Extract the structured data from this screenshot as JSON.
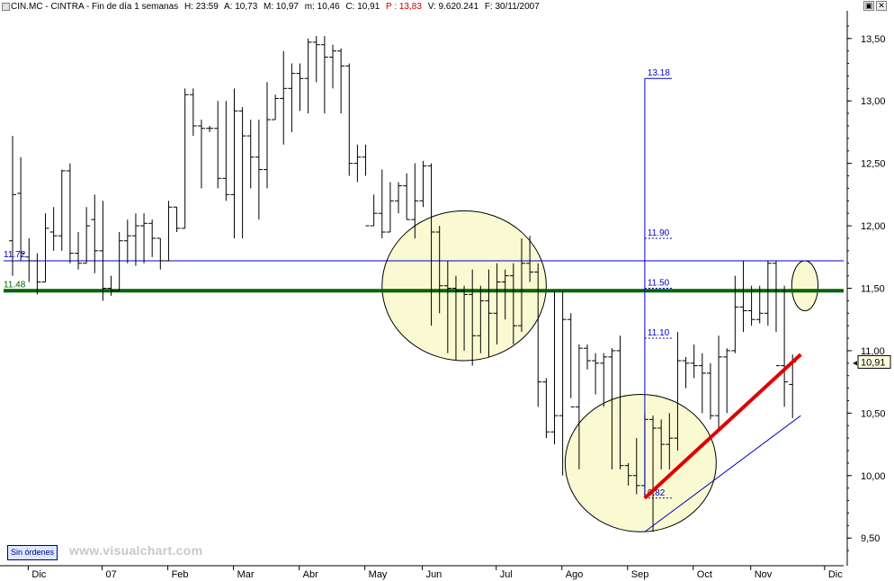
{
  "header": {
    "symbol": "CIN.MC - CINTRA - Fin de día 1 semanas",
    "hour": "H: 23:59",
    "open": "A: 10,73",
    "high": "M: 10,97",
    "low": "m: 10,46",
    "close": "C: 10,91",
    "p": "P : 13,83",
    "volume": "V: 9.620.241",
    "date": "F: 30/11/2007"
  },
  "window_controls": {
    "restore": "▣",
    "close": "✕"
  },
  "badge": "Sin órdenes",
  "watermark": "www.visualchart.com",
  "colors": {
    "bars": "#000000",
    "support_line": "#006400",
    "resistance_line": "#0000c0",
    "trend_line": "#e00000",
    "ellipse_fill": "#fafad2",
    "annotation": "#0000c0"
  },
  "chart_data": {
    "type": "ohlc",
    "title": "CIN.MC - CINTRA - Fin de día 1 semanas",
    "ylim": [
      9.3,
      13.7
    ],
    "y_ticks": [
      "9,50",
      "10,00",
      "10,50",
      "11,00",
      "11,50",
      "12,00",
      "12,50",
      "13,00",
      "13,50"
    ],
    "y_tick_values": [
      9.5,
      10.0,
      10.5,
      11.0,
      11.5,
      12.0,
      12.5,
      13.0,
      13.5
    ],
    "x_labels": [
      "Dic",
      "07",
      "Feb",
      "Mar",
      "Abr",
      "May",
      "Jun",
      "Jul",
      "Ago",
      "Sep",
      "Oct",
      "Nov",
      "Dic"
    ],
    "x_label_weeks": [
      3,
      12,
      20,
      28,
      36,
      44,
      51,
      60,
      68,
      76,
      84,
      91,
      100
    ],
    "bars": [
      [
        11.88,
        12.72,
        11.6,
        12.25
      ],
      [
        12.26,
        12.55,
        11.72,
        11.78
      ],
      [
        11.75,
        11.9,
        11.55,
        11.72
      ],
      [
        11.72,
        11.78,
        11.45,
        11.55
      ],
      [
        11.55,
        12.1,
        11.55,
        11.98
      ],
      [
        11.95,
        12.15,
        11.8,
        11.92
      ],
      [
        11.92,
        12.45,
        11.8,
        12.44
      ],
      [
        12.44,
        12.5,
        11.7,
        11.78
      ],
      [
        11.78,
        11.95,
        11.65,
        11.7
      ],
      [
        11.7,
        12.15,
        11.7,
        12.0
      ],
      [
        12.05,
        12.25,
        11.62,
        11.8
      ],
      [
        11.8,
        12.2,
        11.4,
        11.5
      ],
      [
        11.5,
        11.6,
        11.44,
        11.48
      ],
      [
        11.48,
        11.95,
        11.48,
        11.88
      ],
      [
        11.88,
        12.05,
        11.7,
        11.92
      ],
      [
        11.92,
        12.1,
        11.68,
        12.0
      ],
      [
        12.0,
        12.1,
        11.7,
        12.02
      ],
      [
        12.02,
        12.05,
        11.75,
        11.9
      ],
      [
        11.9,
        11.9,
        11.65,
        11.72
      ],
      [
        11.72,
        12.2,
        11.72,
        12.15
      ],
      [
        12.15,
        12.15,
        11.95,
        11.98
      ],
      [
        11.98,
        13.1,
        11.98,
        13.05
      ],
      [
        13.05,
        13.1,
        12.72,
        12.8
      ],
      [
        12.8,
        12.85,
        12.3,
        12.78
      ],
      [
        12.78,
        12.8,
        12.75,
        12.78
      ],
      [
        12.78,
        13.0,
        12.3,
        12.38
      ],
      [
        12.38,
        13.0,
        12.2,
        12.25
      ],
      [
        12.25,
        13.1,
        11.9,
        12.92
      ],
      [
        12.92,
        12.95,
        11.9,
        12.72
      ],
      [
        12.72,
        12.85,
        12.3,
        12.55
      ],
      [
        12.55,
        12.85,
        12.05,
        12.45
      ],
      [
        12.45,
        13.15,
        12.3,
        12.85
      ],
      [
        12.85,
        13.05,
        12.85,
        13.02
      ],
      [
        13.02,
        13.4,
        12.65,
        13.1
      ],
      [
        13.1,
        13.3,
        12.75,
        13.22
      ],
      [
        13.22,
        13.3,
        12.92,
        13.18
      ],
      [
        13.18,
        13.5,
        12.9,
        13.47
      ],
      [
        13.47,
        13.52,
        13.15,
        13.45
      ],
      [
        13.45,
        13.52,
        12.9,
        13.35
      ],
      [
        13.35,
        13.45,
        13.1,
        13.4
      ],
      [
        13.4,
        13.42,
        12.9,
        13.28
      ],
      [
        13.28,
        13.3,
        12.4,
        12.5
      ],
      [
        12.5,
        12.65,
        12.35,
        12.55
      ],
      [
        12.55,
        12.65,
        12.4,
        12.0
      ],
      [
        12.0,
        12.25,
        12.0,
        12.1
      ],
      [
        12.1,
        12.45,
        11.9,
        11.95
      ],
      [
        11.95,
        12.35,
        11.95,
        12.2
      ],
      [
        12.2,
        12.35,
        12.1,
        12.32
      ],
      [
        12.32,
        12.42,
        12.05,
        12.05
      ],
      [
        12.05,
        12.5,
        11.9,
        12.2
      ],
      [
        12.2,
        12.52,
        12.15,
        12.48
      ],
      [
        12.48,
        12.5,
        11.2,
        11.95
      ],
      [
        11.95,
        12.0,
        11.3,
        11.52
      ],
      [
        11.52,
        11.72,
        10.98,
        11.5
      ],
      [
        11.5,
        11.6,
        10.92,
        11.48
      ],
      [
        11.48,
        11.52,
        11.0,
        11.45
      ],
      [
        11.45,
        11.65,
        10.88,
        11.12
      ],
      [
        11.12,
        11.52,
        10.98,
        11.4
      ],
      [
        11.4,
        11.65,
        10.95,
        11.3
      ],
      [
        11.3,
        11.7,
        11.05,
        11.55
      ],
      [
        11.55,
        11.65,
        11.25,
        11.6
      ],
      [
        11.6,
        11.7,
        11.05,
        11.2
      ],
      [
        11.2,
        11.9,
        11.15,
        11.7
      ],
      [
        11.7,
        11.92,
        11.55,
        11.63
      ],
      [
        11.63,
        11.7,
        10.55,
        10.75
      ],
      [
        10.75,
        10.78,
        10.3,
        10.35
      ],
      [
        10.35,
        11.48,
        10.25,
        10.48
      ],
      [
        10.48,
        11.48,
        10.0,
        11.25
      ],
      [
        11.25,
        11.3,
        10.62,
        10.55
      ],
      [
        10.55,
        11.05,
        10.05,
        11.02
      ],
      [
        11.02,
        11.05,
        10.85,
        10.92
      ],
      [
        10.92,
        10.98,
        10.65,
        10.9
      ],
      [
        10.9,
        10.98,
        10.55,
        10.95
      ],
      [
        10.95,
        11.02,
        10.05,
        11.0
      ],
      [
        11.0,
        11.12,
        10.05,
        10.08
      ],
      [
        10.08,
        10.1,
        9.92,
        10.0
      ],
      [
        10.0,
        10.3,
        9.85,
        9.92
      ],
      [
        9.92,
        10.5,
        9.82,
        10.45
      ],
      [
        10.45,
        10.48,
        9.55,
        10.38
      ],
      [
        10.38,
        10.45,
        10.05,
        10.25
      ],
      [
        10.25,
        10.5,
        10.05,
        10.3
      ],
      [
        10.3,
        11.15,
        10.2,
        10.92
      ],
      [
        10.92,
        10.95,
        10.7,
        10.9
      ],
      [
        10.9,
        11.05,
        10.78,
        10.88
      ],
      [
        10.88,
        10.98,
        10.5,
        10.82
      ],
      [
        10.82,
        10.9,
        10.45,
        10.48
      ],
      [
        10.48,
        11.12,
        10.35,
        10.95
      ],
      [
        10.95,
        11.02,
        10.5,
        11.0
      ],
      [
        11.0,
        11.6,
        10.98,
        11.35
      ],
      [
        11.35,
        11.72,
        11.15,
        11.32
      ],
      [
        11.32,
        11.52,
        11.2,
        11.25
      ],
      [
        11.25,
        11.52,
        11.22,
        11.3
      ],
      [
        11.3,
        11.72,
        11.2,
        11.7
      ],
      [
        11.7,
        11.72,
        11.15,
        10.88
      ],
      [
        10.88,
        11.52,
        10.55,
        10.75
      ],
      [
        10.73,
        10.97,
        10.46,
        10.91
      ]
    ],
    "horizontal_lines": [
      {
        "label": "11.72",
        "value": 11.72,
        "color": "#0000c0"
      },
      {
        "label": "11.48",
        "value": 11.48,
        "color": "#006400"
      }
    ],
    "fib_levels": [
      {
        "label": "13.18",
        "value": 13.18
      },
      {
        "label": "11.90",
        "value": 11.9
      },
      {
        "label": "11.50",
        "value": 11.5
      },
      {
        "label": "11.10",
        "value": 11.1
      },
      {
        "label": "9.82",
        "value": 9.82
      }
    ],
    "fib_anchor_week": 77,
    "last_price_label": "10,91",
    "last_price": 10.91,
    "trend_lines": [
      {
        "from": [
          77,
          9.82
        ],
        "to": [
          96,
          10.97
        ],
        "color": "#e00000"
      },
      {
        "from": [
          77,
          9.55
        ],
        "to": [
          96,
          10.48
        ],
        "color": "#0000c0"
      }
    ],
    "ellipses": [
      {
        "center": [
          55,
          11.52
        ],
        "rx_weeks": 10,
        "ry_value": 0.6
      },
      {
        "center": [
          76.5,
          10.1
        ],
        "rx_weeks": 9.2,
        "ry_value": 0.55
      },
      {
        "center": [
          96.5,
          11.52
        ],
        "rx_weeks": 1.6,
        "ry_value": 0.2
      }
    ]
  }
}
